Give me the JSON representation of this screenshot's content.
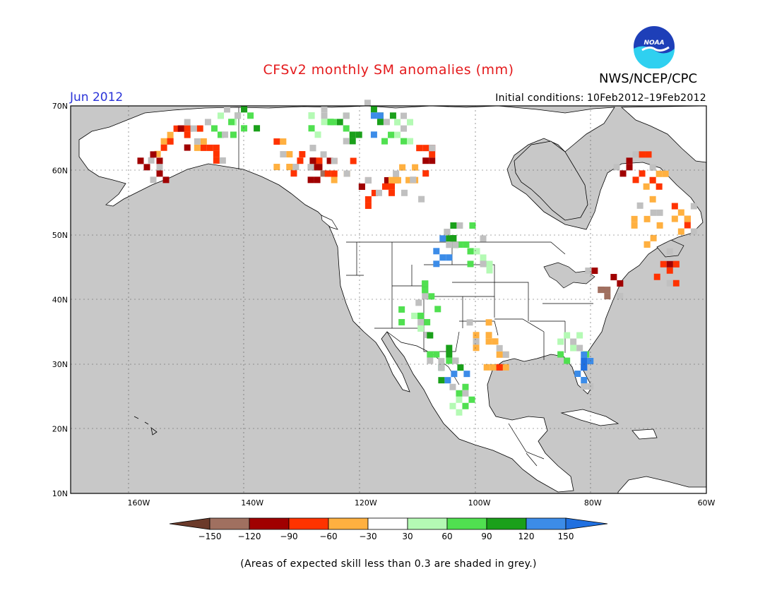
{
  "title": "CFSv2 monthly SM anomalies (mm)",
  "period": "Jun 2012",
  "initial_conditions_label": "Initial conditions:",
  "initial_conditions_range": "10Feb2012–19Feb2012",
  "agency": "NWS/NCEP/CPC",
  "logo_text": "NOAA",
  "caption": "(Areas of expected skill less than 0.3 are shaded in grey.)",
  "colors": {
    "title": "#e41a1c",
    "period": "#2a33d8",
    "ocean": "#c8c8c8",
    "land": "#ffffff",
    "skill_grey": "#c0c0c0"
  },
  "map": {
    "lon_labels": [
      "160W",
      "140W",
      "120W",
      "100W",
      "80W",
      "60W"
    ],
    "lat_labels": [
      "70N",
      "60N",
      "50N",
      "40N",
      "30N",
      "20N",
      "10N"
    ],
    "lon_range": [
      -172,
      -60
    ],
    "lat_range": [
      10,
      70
    ]
  },
  "legend": {
    "ticks": [
      "−150",
      "−120",
      "−90",
      "−60",
      "−30",
      "30",
      "60",
      "90",
      "120",
      "150"
    ],
    "colors": [
      "#6b3a2a",
      "#a07060",
      "#a00000",
      "#ff3300",
      "#ffb040",
      "#ffffff",
      "#b4fab4",
      "#50e050",
      "#1aa01a",
      "#3c8ce8",
      "#2070e0"
    ]
  },
  "anomaly_regions": [
    {
      "lon": -155,
      "lat": 65,
      "v": -60
    },
    {
      "lon": -152,
      "lat": 66,
      "v": -90
    },
    {
      "lon": -148,
      "lat": 64,
      "v": -60
    },
    {
      "lon": -158,
      "lat": 61,
      "v": -120
    },
    {
      "lon": -145,
      "lat": 67,
      "v": 60
    },
    {
      "lon": -142,
      "lat": 68,
      "v": 90
    },
    {
      "lon": -134,
      "lat": 63,
      "v": -60
    },
    {
      "lon": -131,
      "lat": 62,
      "v": -90
    },
    {
      "lon": -128,
      "lat": 61,
      "v": -120
    },
    {
      "lon": -125,
      "lat": 60,
      "v": -60
    },
    {
      "lon": -129,
      "lat": 68,
      "v": 60
    },
    {
      "lon": -124,
      "lat": 67,
      "v": 90
    },
    {
      "lon": -118,
      "lat": 68,
      "v": 120
    },
    {
      "lon": -115,
      "lat": 66,
      "v": 60
    },
    {
      "lon": -119,
      "lat": 57,
      "v": -90
    },
    {
      "lon": -116,
      "lat": 58,
      "v": -60
    },
    {
      "lon": -113,
      "lat": 59,
      "v": -30
    },
    {
      "lon": -110,
      "lat": 62,
      "v": -90
    },
    {
      "lon": -104,
      "lat": 50,
      "v": 90
    },
    {
      "lon": -107,
      "lat": 48,
      "v": 120
    },
    {
      "lon": -101,
      "lat": 47,
      "v": 60
    },
    {
      "lon": -109,
      "lat": 41,
      "v": 90
    },
    {
      "lon": -112,
      "lat": 37,
      "v": 60
    },
    {
      "lon": -107,
      "lat": 33,
      "v": 90
    },
    {
      "lon": -105,
      "lat": 29,
      "v": 120
    },
    {
      "lon": -103,
      "lat": 25,
      "v": 60
    },
    {
      "lon": -100,
      "lat": 35,
      "v": -30
    },
    {
      "lon": -97,
      "lat": 31,
      "v": -60
    },
    {
      "lon": -84,
      "lat": 33,
      "v": 60
    },
    {
      "lon": -81,
      "lat": 30,
      "v": 150
    },
    {
      "lon": -73,
      "lat": 61,
      "v": -90
    },
    {
      "lon": -70,
      "lat": 58,
      "v": -60
    },
    {
      "lon": -65,
      "lat": 53,
      "v": -60
    },
    {
      "lon": -71,
      "lat": 51,
      "v": -30
    },
    {
      "lon": -78,
      "lat": 43,
      "v": -120
    },
    {
      "lon": -67,
      "lat": 45,
      "v": -90
    }
  ]
}
